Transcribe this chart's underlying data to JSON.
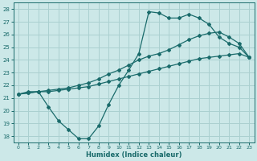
{
  "xlabel": "Humidex (Indice chaleur)",
  "xlim": [
    -0.5,
    23.5
  ],
  "ylim": [
    17.5,
    28.5
  ],
  "xticks": [
    0,
    1,
    2,
    3,
    4,
    5,
    6,
    7,
    8,
    9,
    10,
    11,
    12,
    13,
    14,
    15,
    16,
    17,
    18,
    19,
    20,
    21,
    22,
    23
  ],
  "yticks": [
    18,
    19,
    20,
    21,
    22,
    23,
    24,
    25,
    26,
    27,
    28
  ],
  "background_color": "#cce8e8",
  "grid_color": "#aad0d0",
  "line_color": "#1a6b6b",
  "line1_x": [
    0,
    1,
    2,
    3,
    4,
    5,
    6,
    7,
    8,
    9,
    10,
    11,
    12,
    13,
    14,
    15,
    16,
    17,
    18,
    19,
    20,
    21,
    22,
    23
  ],
  "line1_y": [
    21.3,
    21.5,
    21.5,
    20.3,
    19.2,
    18.5,
    17.8,
    17.8,
    18.8,
    20.5,
    22.0,
    23.2,
    24.5,
    27.8,
    27.7,
    27.3,
    27.3,
    27.6,
    27.3,
    26.8,
    25.8,
    25.3,
    25.0,
    24.2
  ],
  "line2_x": [
    0,
    1,
    2,
    3,
    4,
    5,
    6,
    7,
    8,
    9,
    10,
    11,
    12,
    13,
    14,
    15,
    16,
    17,
    18,
    19,
    20,
    21,
    22,
    23
  ],
  "line2_y": [
    21.3,
    21.4,
    21.5,
    21.5,
    21.6,
    21.7,
    21.8,
    21.9,
    22.1,
    22.3,
    22.5,
    22.7,
    22.9,
    23.1,
    23.3,
    23.5,
    23.7,
    23.9,
    24.1,
    24.2,
    24.3,
    24.4,
    24.5,
    24.2
  ],
  "line3_x": [
    0,
    1,
    2,
    3,
    4,
    5,
    6,
    7,
    8,
    9,
    10,
    11,
    12,
    13,
    14,
    15,
    16,
    17,
    18,
    19,
    20,
    21,
    22,
    23
  ],
  "line3_y": [
    21.3,
    21.4,
    21.5,
    21.6,
    21.7,
    21.8,
    22.0,
    22.2,
    22.5,
    22.9,
    23.2,
    23.6,
    24.0,
    24.3,
    24.5,
    24.8,
    25.2,
    25.6,
    25.9,
    26.1,
    26.2,
    25.8,
    25.3,
    24.2
  ]
}
